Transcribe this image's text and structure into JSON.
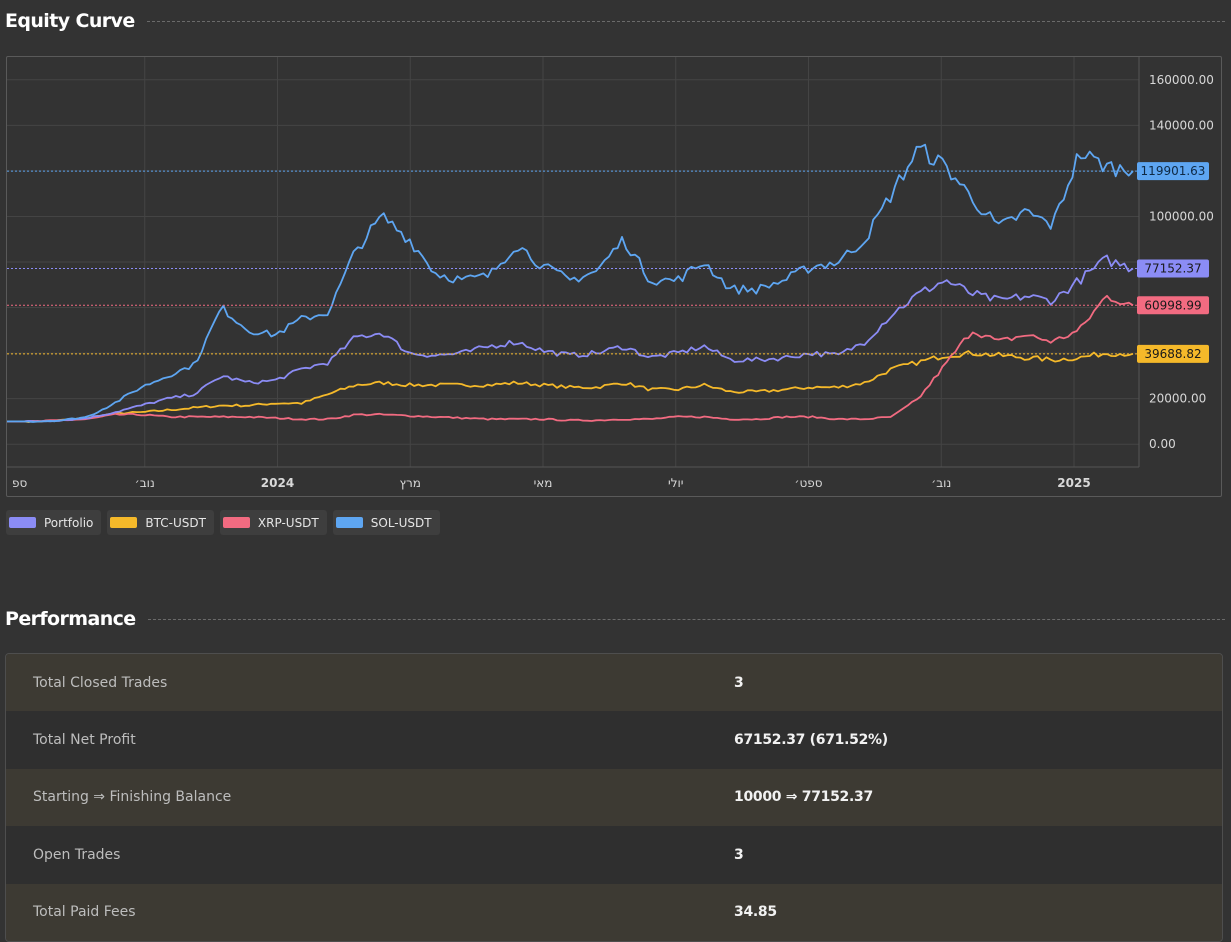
{
  "equity_section": {
    "title": "Equity Curve"
  },
  "performance_section": {
    "title": "Performance"
  },
  "chart_data": {
    "type": "line",
    "x_labels": [
      "ספ",
      "נוב׳",
      "2024",
      "מרץ",
      "מאי",
      "יולי",
      "ספט׳",
      "נוב׳",
      "2025"
    ],
    "y_ticks": [
      "160000.00",
      "140000.00",
      "100000.00",
      "20000.00",
      "0.00"
    ],
    "ylim": [
      -10000,
      170000
    ],
    "grid": true,
    "legend_position": "bottom-left",
    "series": [
      {
        "name": "Portfolio",
        "color": "#8b8cf5",
        "last_value": "77152.37",
        "values": [
          10000,
          10000,
          10500,
          11500,
          14000,
          17000,
          20000,
          22000,
          30000,
          27000,
          28000,
          33000,
          36000,
          47000,
          49000,
          40000,
          39000,
          40000,
          43000,
          45000,
          41000,
          39000,
          40000,
          43000,
          38000,
          40000,
          43000,
          37000,
          37000,
          38000,
          40000,
          39000,
          45000,
          57000,
          66000,
          72000,
          66000,
          63000,
          65000,
          63000,
          72000,
          81000,
          77152.37
        ]
      },
      {
        "name": "BTC-USDT",
        "color": "#f5b92a",
        "last_value": "39688.82",
        "values": [
          10000,
          10000,
          10500,
          11500,
          13500,
          14000,
          15000,
          16000,
          17000,
          17000,
          18000,
          18000,
          22000,
          26000,
          27000,
          26000,
          26000,
          26000,
          26000,
          27000,
          26000,
          25000,
          25000,
          27000,
          24000,
          24000,
          26000,
          23000,
          23000,
          24000,
          25000,
          25000,
          27000,
          33000,
          36000,
          39000,
          40000,
          39000,
          38000,
          37000,
          38000,
          40000,
          39688.82
        ]
      },
      {
        "name": "XRP-USDT",
        "color": "#f26b81",
        "last_value": "60998.99",
        "values": [
          10000,
          10000,
          10500,
          11000,
          13000,
          13000,
          12000,
          12000,
          12000,
          12000,
          11500,
          11000,
          11000,
          13000,
          13000,
          12500,
          12000,
          11500,
          11000,
          11000,
          11000,
          10500,
          10500,
          11000,
          11000,
          12000,
          12000,
          11000,
          11000,
          12000,
          12000,
          11000,
          11000,
          12000,
          20000,
          35000,
          50000,
          45000,
          48000,
          45000,
          50000,
          65000,
          60998.99
        ]
      },
      {
        "name": "SOL-USDT",
        "color": "#5ea6f2",
        "last_value": "119901.63",
        "values": [
          10000,
          10000,
          10500,
          12000,
          18000,
          25000,
          30000,
          35000,
          60000,
          50000,
          48000,
          55000,
          58000,
          85000,
          100000,
          90000,
          75000,
          72000,
          74000,
          88000,
          78000,
          72000,
          76000,
          90000,
          72000,
          72000,
          80000,
          68000,
          68000,
          72000,
          78000,
          80000,
          90000,
          110000,
          130000,
          122000,
          108000,
          95000,
          102000,
          96000,
          128000,
          122000,
          119901.63
        ]
      }
    ]
  },
  "performance": [
    {
      "label": "Total Closed Trades",
      "value": "3"
    },
    {
      "label": "Total Net Profit",
      "value": "67152.37 (671.52%)"
    },
    {
      "label": "Starting ⇒ Finishing Balance",
      "value": "10000 ⇒ 77152.37"
    },
    {
      "label": "Open Trades",
      "value": "3"
    },
    {
      "label": "Total Paid Fees",
      "value": "34.85"
    }
  ]
}
